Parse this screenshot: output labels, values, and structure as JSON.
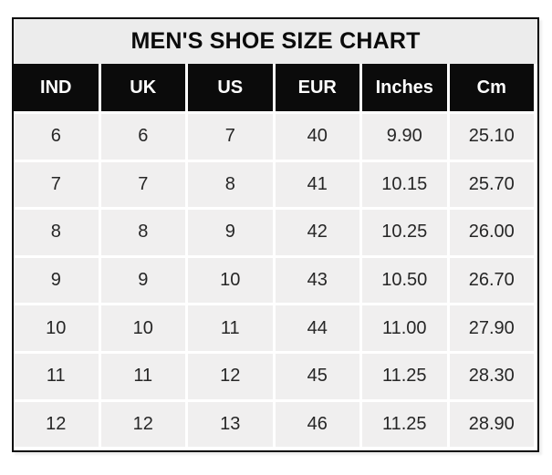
{
  "chart_data": {
    "type": "table",
    "title": "MEN'S SHOE SIZE CHART",
    "columns": [
      "IND",
      "UK",
      "US",
      "EUR",
      "Inches",
      "Cm"
    ],
    "rows": [
      [
        "6",
        "6",
        "7",
        "40",
        "9.90",
        "25.10"
      ],
      [
        "7",
        "7",
        "8",
        "41",
        "10.15",
        "25.70"
      ],
      [
        "8",
        "8",
        "9",
        "42",
        "10.25",
        "26.00"
      ],
      [
        "9",
        "9",
        "10",
        "43",
        "10.50",
        "26.70"
      ],
      [
        "10",
        "10",
        "11",
        "44",
        "11.00",
        "27.90"
      ],
      [
        "11",
        "11",
        "12",
        "45",
        "11.25",
        "28.30"
      ],
      [
        "12",
        "12",
        "13",
        "46",
        "11.25",
        "28.90"
      ]
    ],
    "layout": {
      "legend": "none",
      "grid": "white 3px separators between cells",
      "header_position": "top row below title bar"
    }
  },
  "colors": {
    "outer_border": "#0b0b0b",
    "title_bg": "#ececec",
    "title_text": "#0b0b0b",
    "header_bg": "#0b0b0b",
    "header_text": "#ffffff",
    "cell_bg": "#f0efef",
    "cell_text": "#262626",
    "gap": "#ffffff",
    "page_bg": "#ffffff"
  }
}
